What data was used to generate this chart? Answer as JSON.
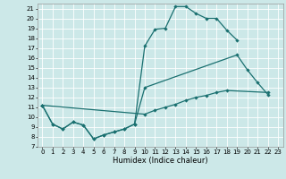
{
  "xlabel": "Humidex (Indice chaleur)",
  "xlim": [
    -0.5,
    23.5
  ],
  "ylim": [
    7,
    21.5
  ],
  "xticks": [
    0,
    1,
    2,
    3,
    4,
    5,
    6,
    7,
    8,
    9,
    10,
    11,
    12,
    13,
    14,
    15,
    16,
    17,
    18,
    19,
    20,
    21,
    22,
    23
  ],
  "yticks": [
    7,
    8,
    9,
    10,
    11,
    12,
    13,
    14,
    15,
    16,
    17,
    18,
    19,
    20,
    21
  ],
  "bg_color": "#cce8e8",
  "grid_color": "#ffffff",
  "line_color": "#1a7070",
  "line1_x": [
    0,
    1,
    2,
    3,
    4,
    5,
    6,
    7,
    8,
    9,
    10,
    11,
    12,
    13,
    14,
    15,
    16,
    17,
    18,
    19
  ],
  "line1_y": [
    11.2,
    9.3,
    8.8,
    9.5,
    9.2,
    7.8,
    8.2,
    8.5,
    8.8,
    9.3,
    17.2,
    18.9,
    19.0,
    21.2,
    21.2,
    20.5,
    20.0,
    20.0,
    18.8,
    17.8
  ],
  "line2_x": [
    0,
    1,
    2,
    3,
    4,
    5,
    6,
    7,
    8,
    9,
    10,
    19,
    20,
    21,
    22
  ],
  "line2_y": [
    11.2,
    9.3,
    8.8,
    9.5,
    9.2,
    7.8,
    8.2,
    8.5,
    8.8,
    9.3,
    13.0,
    16.3,
    14.8,
    13.5,
    12.3
  ],
  "line3_x": [
    0,
    10,
    11,
    12,
    13,
    14,
    15,
    16,
    17,
    18,
    22
  ],
  "line3_y": [
    11.2,
    10.3,
    10.7,
    11.0,
    11.3,
    11.7,
    12.0,
    12.2,
    12.5,
    12.7,
    12.5
  ],
  "tick_fontsize": 5,
  "xlabel_fontsize": 6
}
